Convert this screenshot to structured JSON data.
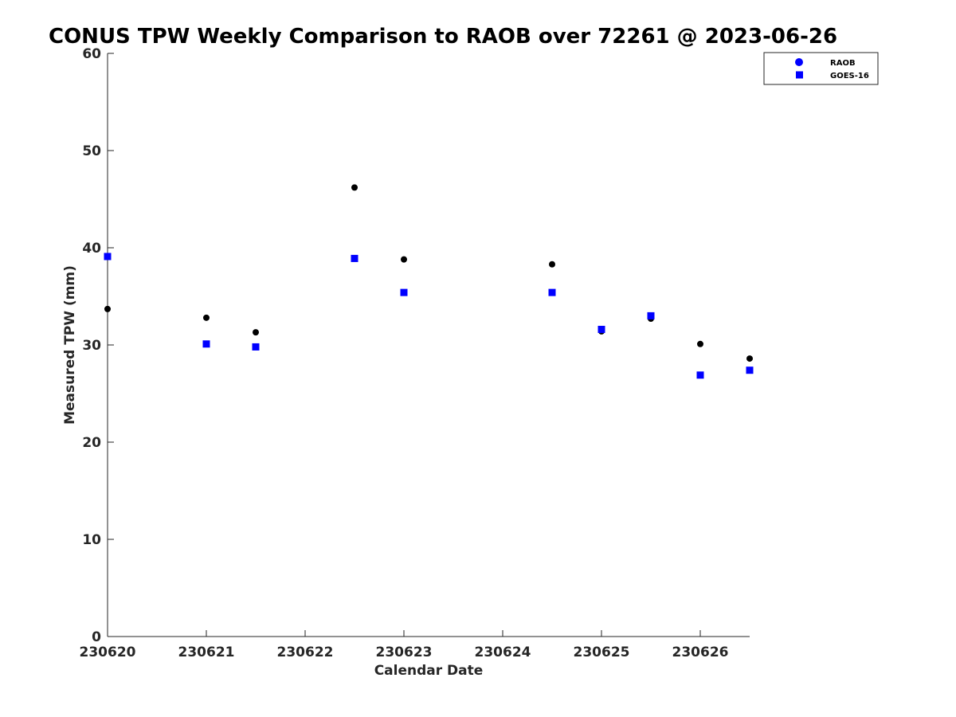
{
  "chart_data": {
    "type": "scatter",
    "title": "CONUS TPW Weekly Comparison to RAOB over 72261 @ 2023-06-26",
    "xlabel": "Calendar Date",
    "ylabel": "Measured TPW (mm)",
    "xlim": [
      230620,
      230626.5
    ],
    "ylim": [
      0,
      60
    ],
    "x_ticks": [
      230620,
      230621,
      230622,
      230623,
      230624,
      230625,
      230626
    ],
    "x_tick_labels": [
      "230620",
      "230621",
      "230622",
      "230623",
      "230624",
      "230625",
      "230626"
    ],
    "y_ticks": [
      0,
      10,
      20,
      30,
      40,
      50,
      60
    ],
    "y_tick_labels": [
      "0",
      "10",
      "20",
      "30",
      "40",
      "50",
      "60"
    ],
    "grid": false,
    "legend_position": "top-right",
    "legend": [
      {
        "label": "RAOB",
        "marker": "circle",
        "color": "#0000ff"
      },
      {
        "label": "GOES-16",
        "marker": "square",
        "color": "#0000ff"
      }
    ],
    "series": [
      {
        "name": "RAOB",
        "marker": "circle",
        "color": "#000000",
        "x": [
          230620.0,
          230621.0,
          230621.5,
          230622.5,
          230623.0,
          230624.5,
          230625.0,
          230625.5,
          230626.0,
          230626.5
        ],
        "y": [
          33.7,
          32.8,
          31.3,
          46.2,
          38.8,
          38.3,
          31.4,
          32.7,
          30.1,
          28.6
        ]
      },
      {
        "name": "GOES-16",
        "marker": "square",
        "color": "#0000ff",
        "x": [
          230620.0,
          230621.0,
          230621.5,
          230622.5,
          230623.0,
          230624.5,
          230625.0,
          230625.5,
          230626.0,
          230626.5
        ],
        "y": [
          39.1,
          30.1,
          29.8,
          38.9,
          35.4,
          35.4,
          31.6,
          33.0,
          26.9,
          27.4
        ]
      }
    ]
  }
}
